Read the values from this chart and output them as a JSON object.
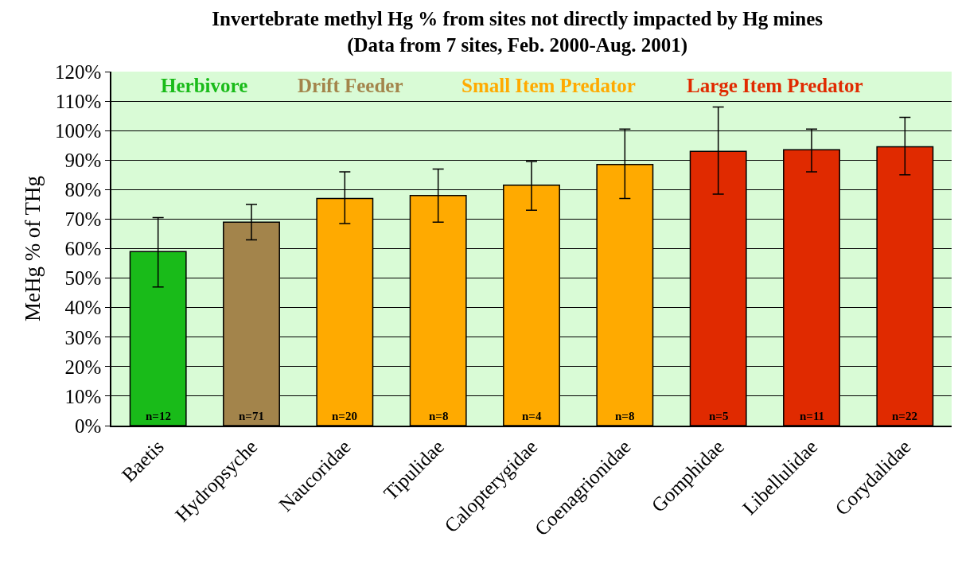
{
  "chart_data": {
    "type": "bar",
    "title": "Invertebrate methyl Hg % from sites not directly impacted by Hg mines\n(Data from 7 sites, Feb. 2000-Aug. 2001)",
    "ylabel": "MeHg % of THg",
    "categories": [
      "Baetis",
      "Hydropsyche",
      "Naucoridae",
      "Tipulidae",
      "Calopterygidae",
      "Coenagrionidae",
      "Gomphidae",
      "Libellulidae",
      "Corydalidae"
    ],
    "values": [
      59,
      69,
      77,
      78,
      81.5,
      88.5,
      93,
      93.5,
      94.5
    ],
    "colors": [
      "#19bb19",
      "#a3844b",
      "#ffaa00",
      "#ffaa00",
      "#ffaa00",
      "#ffaa00",
      "#e02a00",
      "#e02a00",
      "#e02a00"
    ],
    "errors": [
      [
        47,
        70.5
      ],
      [
        63,
        75
      ],
      [
        68.5,
        86
      ],
      [
        69,
        87
      ],
      [
        73,
        89.5
      ],
      [
        77,
        100.5
      ],
      [
        78.5,
        108
      ],
      [
        86,
        100.5
      ],
      [
        85,
        104.5
      ]
    ],
    "ylim": [
      0,
      120
    ],
    "yticks": [
      {
        "value": 0,
        "label": "0%"
      },
      {
        "value": 10,
        "label": "10%"
      },
      {
        "value": 20,
        "label": "20%"
      },
      {
        "value": 30,
        "label": "30%"
      },
      {
        "value": 40,
        "label": "40%"
      },
      {
        "value": 50,
        "label": "50%"
      },
      {
        "value": 60,
        "label": "60%"
      },
      {
        "value": 70,
        "label": "70%"
      },
      {
        "value": 80,
        "label": "80%"
      },
      {
        "value": 90,
        "label": "90%"
      },
      {
        "value": 100,
        "label": "100%"
      },
      {
        "value": 110,
        "label": "110%"
      },
      {
        "value": 120,
        "label": "120%"
      }
    ],
    "grid": "y",
    "annotations": [
      "Herbivore",
      "Drift Feeder",
      "Small Item Predator",
      "Large Item Predator",
      "n=12",
      "n=71",
      "n=20",
      "n=8",
      "n=4",
      "n=8",
      "n=5",
      "n=11",
      "n=22"
    ]
  }
}
